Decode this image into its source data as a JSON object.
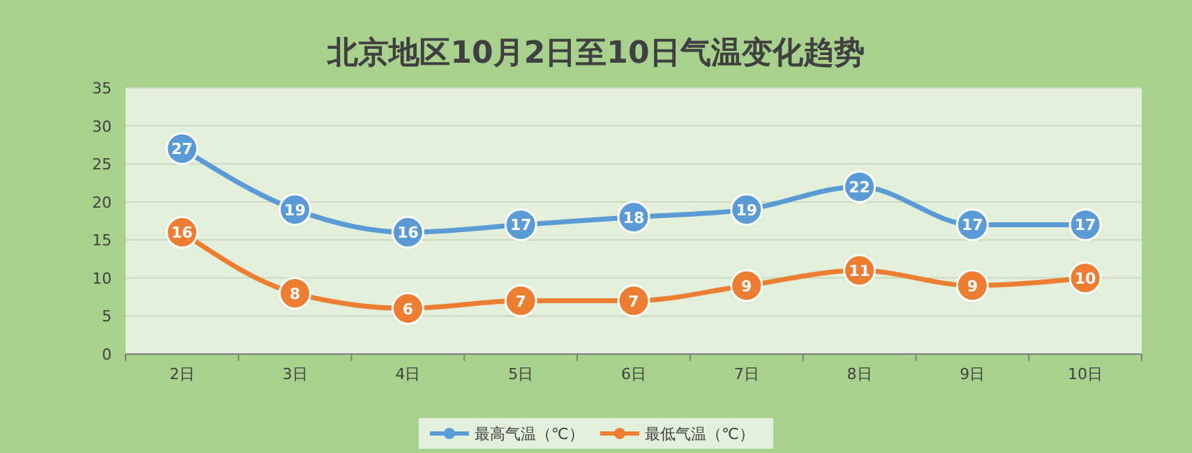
{
  "chart_data": {
    "type": "line",
    "title": "北京地区10月2日至10日气温变化趋势",
    "categories": [
      "2日",
      "3日",
      "4日",
      "5日",
      "6日",
      "7日",
      "8日",
      "9日",
      "10日"
    ],
    "series": [
      {
        "name": "最高气温（℃）",
        "color": "#5b9bd5",
        "values": [
          27,
          19,
          16,
          17,
          18,
          19,
          22,
          17,
          17
        ]
      },
      {
        "name": "最低气温（℃）",
        "color": "#ed7d31",
        "values": [
          16,
          8,
          6,
          7,
          7,
          9,
          11,
          9,
          10
        ]
      }
    ],
    "ylim": [
      0,
      35
    ],
    "yticks": [
      0,
      5,
      10,
      15,
      20,
      25,
      30,
      35
    ],
    "grid": "y",
    "legend": "bottom",
    "marker": "circle",
    "data_labels": true,
    "line_style": "solid"
  }
}
